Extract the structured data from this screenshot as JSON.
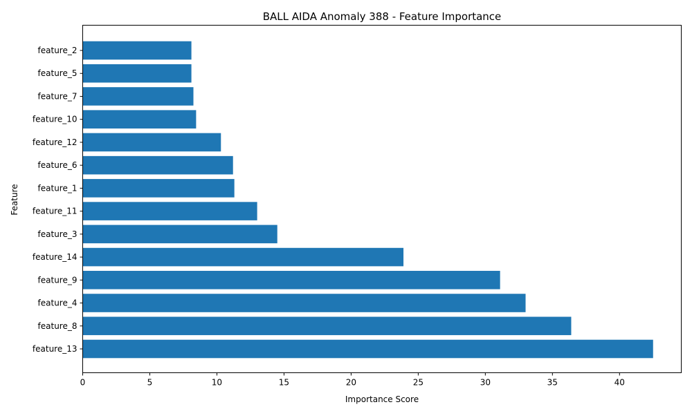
{
  "chart_data": {
    "type": "bar",
    "orientation": "horizontal",
    "title": "BALL AIDA Anomaly 388 - Feature Importance",
    "xlabel": "Importance Score",
    "ylabel": "Feature",
    "categories": [
      "feature_13",
      "feature_8",
      "feature_4",
      "feature_9",
      "feature_14",
      "feature_3",
      "feature_11",
      "feature_1",
      "feature_6",
      "feature_12",
      "feature_10",
      "feature_7",
      "feature_5",
      "feature_2"
    ],
    "values": [
      42.5,
      36.4,
      33.0,
      31.1,
      23.9,
      14.5,
      13.0,
      11.3,
      11.2,
      10.3,
      8.45,
      8.25,
      8.1,
      8.1
    ],
    "xlim": [
      0,
      44.6
    ],
    "xticks": [
      0,
      5,
      10,
      15,
      20,
      25,
      30,
      35,
      40
    ],
    "grid": false,
    "bar_color": "#1f77b4"
  }
}
